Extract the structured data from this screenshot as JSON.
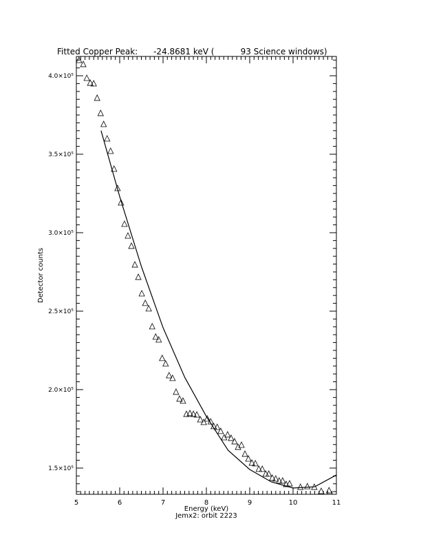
{
  "chart_data": {
    "type": "scatter",
    "title": "Fitted Copper Peak:      -24.8681 keV (          93 Science windows)",
    "x_label": "Energy (keV)",
    "subtitle": "Jemx2: orbit 2223",
    "y_label": "Detector counts",
    "xlim": [
      5,
      11
    ],
    "ylim": [
      133300,
      412300
    ],
    "xticks": [
      5,
      6,
      7,
      8,
      9,
      10,
      11
    ],
    "yticks": [
      {
        "value": 150000,
        "label": "1.5×10⁵"
      },
      {
        "value": 200000,
        "label": "2.0×10⁵"
      },
      {
        "value": 250000,
        "label": "2.5×10⁵"
      },
      {
        "value": 300000,
        "label": "3.0×10⁵"
      },
      {
        "value": 350000,
        "label": "3.5×10⁵"
      },
      {
        "value": 400000,
        "label": "4.0×10⁵"
      }
    ],
    "minor_ticks": {
      "x": 10,
      "y": 10
    },
    "color": "#000000",
    "series": [
      {
        "marker": "triangle",
        "x": [
          5.06,
          5.16,
          5.24,
          5.32,
          5.4,
          5.48,
          5.56,
          5.63,
          5.71,
          5.79,
          5.87,
          5.95,
          6.03,
          6.11,
          6.19,
          6.27,
          6.35,
          6.43,
          6.51,
          6.59,
          6.67,
          6.75,
          6.83,
          6.9,
          6.98,
          7.06,
          7.14,
          7.22,
          7.3,
          7.38,
          7.46,
          7.54,
          7.62,
          7.7,
          7.78,
          7.86,
          7.94,
          8.02,
          8.1,
          8.17,
          8.25,
          8.33,
          8.41,
          8.49,
          8.57,
          8.65,
          8.73,
          8.81,
          8.89,
          8.97,
          9.05,
          9.13,
          9.21,
          9.29,
          9.37,
          9.44,
          9.52,
          9.6,
          9.68,
          9.76,
          9.84,
          9.92,
          10.17,
          10.33,
          10.49,
          10.65,
          10.83
        ],
        "values": [
          410100,
          407500,
          398700,
          395600,
          395200,
          386000,
          376300,
          369300,
          360100,
          352200,
          340800,
          328500,
          319300,
          305700,
          298200,
          291700,
          279800,
          271900,
          261400,
          255300,
          251800,
          240400,
          233800,
          232000,
          220200,
          216700,
          209200,
          207500,
          198700,
          194300,
          193000,
          184600,
          185100,
          184600,
          184200,
          181100,
          179400,
          181600,
          179800,
          176800,
          176300,
          173700,
          169700,
          171500,
          169300,
          167100,
          163600,
          164900,
          159200,
          156100,
          153500,
          153100,
          149600,
          149600,
          146500,
          146500,
          143900,
          143400,
          142100,
          142100,
          139900,
          140300,
          138100,
          138500,
          138100,
          135500,
          135900
        ]
      },
      {
        "marker": "line",
        "x": [
          5.57,
          6.0,
          6.5,
          7.0,
          7.5,
          8.0,
          8.5,
          9.0,
          9.5,
          10.0,
          10.5,
          11.0
        ],
        "values": [
          365000,
          323000,
          278500,
          239500,
          207900,
          182900,
          161400,
          149100,
          141200,
          137300,
          138100,
          145600
        ]
      }
    ]
  }
}
